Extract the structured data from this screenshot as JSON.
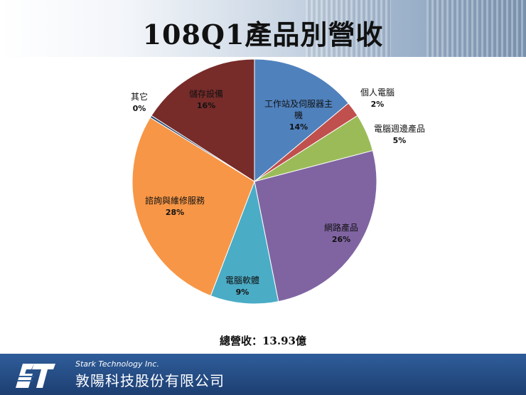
{
  "header": {
    "title": "108Q1產品別營收"
  },
  "chart_data": {
    "type": "pie",
    "slices": [
      {
        "label": "工作站及伺服器主機",
        "label_lines": [
          "工作站及伺服器主",
          "機"
        ],
        "value": 14,
        "value_label": "14%",
        "color": "#4f81bd"
      },
      {
        "label": "個人電腦",
        "label_lines": [
          "個人電腦"
        ],
        "value": 2,
        "value_label": "2%",
        "color": "#c0504d"
      },
      {
        "label": "電腦週邊產品",
        "label_lines": [
          "電腦週邊產品"
        ],
        "value": 5,
        "value_label": "5%",
        "color": "#9bbb59"
      },
      {
        "label": "網路產品",
        "label_lines": [
          "網路產品"
        ],
        "value": 26,
        "value_label": "26%",
        "color": "#8064a2"
      },
      {
        "label": "電腦軟體",
        "label_lines": [
          "電腦軟體"
        ],
        "value": 9,
        "value_label": "9%",
        "color": "#4bacc6"
      },
      {
        "label": "諮詢與維修服務",
        "label_lines": [
          "諮詢與維修服務"
        ],
        "value": 28,
        "value_label": "28%",
        "color": "#f79646"
      },
      {
        "label": "其它",
        "label_lines": [
          "其它"
        ],
        "value": 0.3,
        "value_label": "0%",
        "color": "#2c4d75"
      },
      {
        "label": "儲存設備",
        "label_lines": [
          "儲存設備"
        ],
        "value": 16,
        "value_label": "16%",
        "color": "#772c2a"
      }
    ],
    "title": "108Q1產品別營收",
    "total_label": "總營收：13.93億"
  },
  "footer": {
    "company_en": "Stark Technology Inc.",
    "company_zh": "敦陽科技股份有限公司"
  }
}
